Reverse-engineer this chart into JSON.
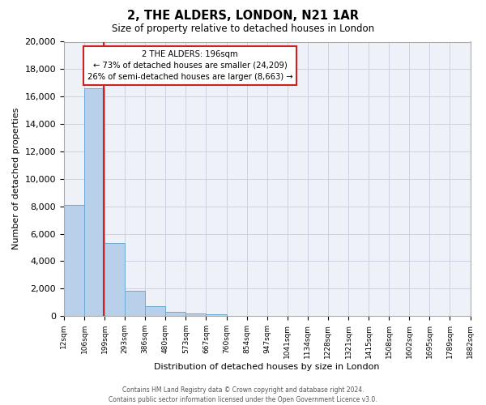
{
  "title": "2, THE ALDERS, LONDON, N21 1AR",
  "subtitle": "Size of property relative to detached houses in London",
  "xlabel": "Distribution of detached houses by size in London",
  "ylabel": "Number of detached properties",
  "bar_color": "#b8d0ea",
  "bar_edge_color": "#6aaad4",
  "background_color": "#eef2f8",
  "grid_color": "#c8cede",
  "vline_color": "#cc2222",
  "annotation_line1": "2 THE ALDERS: 196sqm",
  "annotation_line2": "← 73% of detached houses are smaller (24,209)",
  "annotation_line3": "26% of semi-detached houses are larger (8,663) →",
  "annotation_box_color": "white",
  "annotation_box_edge": "#cc2222",
  "ylim": [
    0,
    20000
  ],
  "yticks": [
    0,
    2000,
    4000,
    6000,
    8000,
    10000,
    12000,
    14000,
    16000,
    18000,
    20000
  ],
  "bin_labels": [
    "12sqm",
    "106sqm",
    "199sqm",
    "293sqm",
    "386sqm",
    "480sqm",
    "573sqm",
    "667sqm",
    "760sqm",
    "854sqm",
    "947sqm",
    "1041sqm",
    "1134sqm",
    "1228sqm",
    "1321sqm",
    "1415sqm",
    "1508sqm",
    "1602sqm",
    "1695sqm",
    "1789sqm",
    "1882sqm"
  ],
  "bar_heights": [
    8100,
    16600,
    5300,
    1850,
    700,
    300,
    200,
    150,
    0,
    0,
    0,
    0,
    0,
    0,
    0,
    0,
    0,
    0,
    0,
    0
  ],
  "n_bars": 20,
  "vline_bar_index": 1.97,
  "footer_text": "Contains HM Land Registry data © Crown copyright and database right 2024.\nContains public sector information licensed under the Open Government Licence v3.0."
}
